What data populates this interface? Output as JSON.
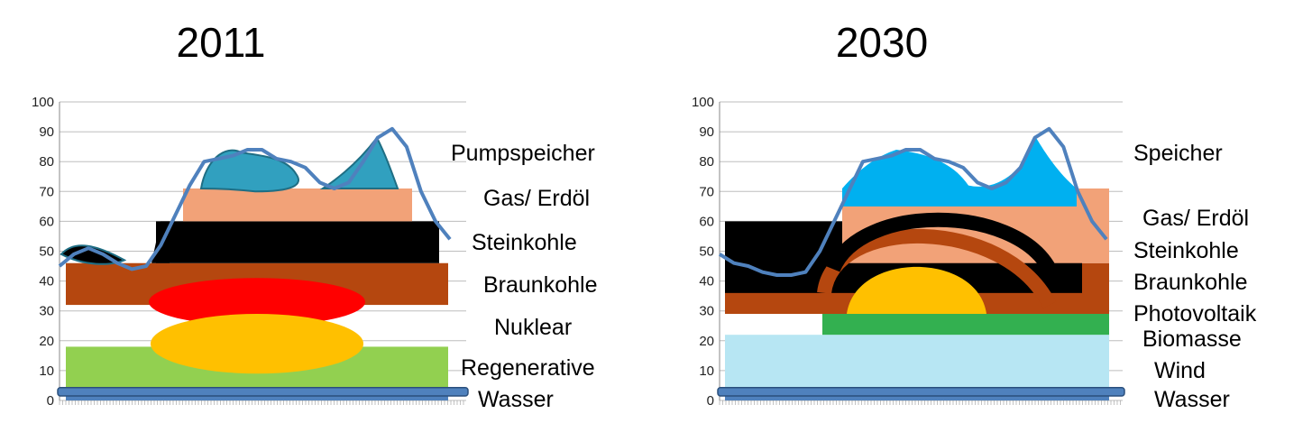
{
  "chart_data": [
    {
      "type": "area",
      "title": "2011",
      "ylim": [
        0,
        100
      ],
      "yticks": [
        0,
        10,
        20,
        30,
        40,
        50,
        60,
        70,
        80,
        90,
        100
      ],
      "grid": true,
      "legend_position": "right",
      "load_curve_color": "#4f81bd",
      "series": [
        {
          "name": "Wasser",
          "color": "#4f81bd",
          "bottom": 0,
          "top": 4
        },
        {
          "name": "Regenerative",
          "color": "#92d050",
          "bottom": 4,
          "top": 18
        },
        {
          "name": "Nuklear",
          "color": "#ff0000",
          "bottom": 18,
          "top": 32
        },
        {
          "name": "Braunkohle",
          "color": "#b5470f",
          "bottom": 32,
          "top": 46
        },
        {
          "name": "Steinkohle",
          "color": "#000000",
          "bottom": 46,
          "top": 60
        },
        {
          "name": "Gas/ Erdöl",
          "color": "#f2a278",
          "bottom": 60,
          "top": 71
        },
        {
          "name": "Pumpspeicher",
          "color": "#31a0bf",
          "bottom": 71,
          "top": 88
        }
      ],
      "load_curve": [
        45,
        49,
        51,
        49,
        46,
        44,
        45,
        52,
        62,
        72,
        80,
        81,
        82,
        84,
        84,
        81,
        80,
        78,
        73,
        71,
        73,
        80,
        88,
        91,
        85,
        70,
        60,
        54
      ]
    },
    {
      "type": "area",
      "title": "2030",
      "ylim": [
        0,
        100
      ],
      "yticks": [
        0,
        10,
        20,
        30,
        40,
        50,
        60,
        70,
        80,
        90,
        100
      ],
      "grid": true,
      "legend_position": "right",
      "load_curve_color": "#4f81bd",
      "series": [
        {
          "name": "Wasser",
          "color": "#4f81bd",
          "bottom": 0,
          "top": 4
        },
        {
          "name": "Wind",
          "color": "#b7e6f3",
          "bottom": 4,
          "top": 22
        },
        {
          "name": "Biomasse",
          "color": "#33b050",
          "bottom": 22,
          "top": 29
        },
        {
          "name": "Photovoltaik",
          "color": "#ffc000",
          "bottom": 29,
          "top": 44
        },
        {
          "name": "Braunkohle",
          "color": "#b5470f",
          "bottom": 29,
          "top": 46
        },
        {
          "name": "Steinkohle",
          "color": "#000000",
          "bottom": 36,
          "top": 60
        },
        {
          "name": "Gas/ Erdöl",
          "color": "#f2a278",
          "bottom": 46,
          "top": 71
        },
        {
          "name": "Speicher",
          "color": "#00b0f0",
          "bottom": 65,
          "top": 88
        }
      ],
      "load_curve": [
        49,
        46,
        45,
        43,
        42,
        42,
        43,
        50,
        60,
        70,
        80,
        81,
        82,
        84,
        84,
        81,
        80,
        78,
        73,
        71,
        73,
        78,
        88,
        91,
        85,
        70,
        60,
        54
      ]
    }
  ]
}
